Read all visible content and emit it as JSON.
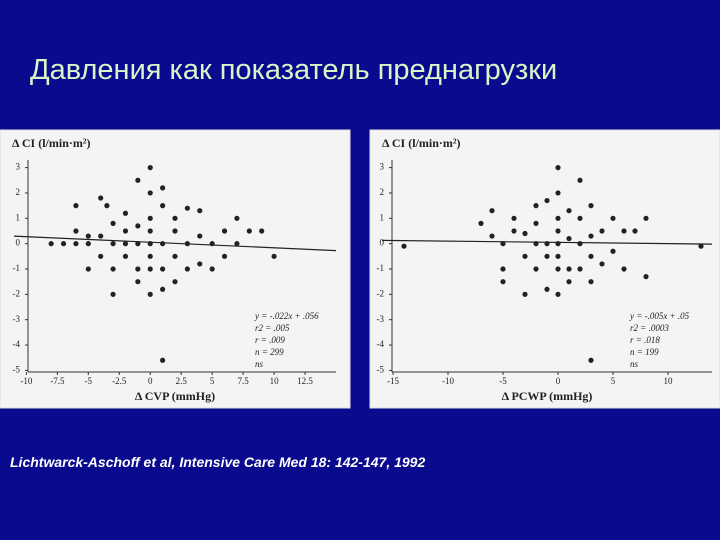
{
  "slide": {
    "title": "Давления как показатель преднагрузки",
    "citation": "Lichtwarck-Aschoff et al, Intensive Care Med 18: 142-147, 1992"
  },
  "chart_data": [
    {
      "type": "scatter",
      "y_label": "Δ CI (l/min·m²)",
      "x_label": "Δ CVP (mmHg)",
      "xlim": [
        -11,
        15
      ],
      "ylim": [
        -5.3,
        3.3
      ],
      "xticks": [
        -10,
        -7.5,
        -5,
        -2.5,
        0,
        2.5,
        5,
        7.5,
        10,
        12.5
      ],
      "yticks": [
        3,
        2,
        1,
        0,
        -1,
        -2,
        -3,
        -4,
        -5
      ],
      "color": "#222222",
      "trendline": {
        "slope": -0.022,
        "intercept": 0.056
      },
      "annotations": [
        "y = -.022x + .056",
        "r2 = .005",
        "r = .009",
        "n = 299",
        "ns"
      ],
      "x": [
        -8,
        -7,
        -6,
        -6,
        -6,
        -5,
        -5,
        -5,
        -4,
        -4,
        -4,
        -3.5,
        -3,
        -3,
        -3,
        -3,
        -2,
        -2,
        -2,
        -2,
        -1,
        -1,
        -1,
        -1,
        -1,
        0,
        0,
        0,
        0,
        0,
        0,
        0,
        0,
        1,
        1,
        1,
        1,
        1,
        1,
        2,
        2,
        2,
        2,
        3,
        3,
        3,
        4,
        4,
        4,
        5,
        5,
        6,
        6,
        7,
        7,
        8,
        9,
        10
      ],
      "values": [
        0,
        0,
        0,
        0.5,
        1.5,
        0,
        -1,
        0.3,
        -0.5,
        0.3,
        1.8,
        1.5,
        0,
        0.8,
        -1,
        -2,
        0.5,
        -0.5,
        1.2,
        0,
        0,
        2.5,
        -1,
        -1.5,
        0.7,
        0,
        3,
        2,
        1,
        -1,
        -2,
        0.5,
        -0.5,
        0,
        2.2,
        1.5,
        -1,
        -1.8,
        -4.6,
        0.5,
        -0.5,
        -1.5,
        1,
        0,
        1.4,
        -1,
        0.3,
        -0.8,
        1.3,
        0,
        -1,
        0.5,
        -0.5,
        1,
        0,
        0.5,
        0.5,
        -0.5
      ]
    },
    {
      "type": "scatter",
      "y_label": "Δ CI (l/min·m²)",
      "x_label": "Δ PCWP (mmHg)",
      "xlim": [
        -16,
        14
      ],
      "ylim": [
        -5.3,
        3.3
      ],
      "xticks": [
        -15,
        -10,
        -5,
        0,
        5,
        10
      ],
      "yticks": [
        3,
        2,
        1,
        0,
        -1,
        -2,
        -3,
        -4,
        -5
      ],
      "color": "#222222",
      "trendline": {
        "slope": -0.005,
        "intercept": 0.05
      },
      "annotations": [
        "y = -.005x + .05",
        "r2 = .0003",
        "r = .018",
        "n = 199",
        "ns"
      ],
      "x": [
        -14,
        -7,
        -6,
        -6,
        -5,
        -5,
        -5,
        -4,
        -4,
        -3,
        -3,
        -3,
        -2,
        -2,
        -2,
        -2,
        -1,
        -1,
        -1,
        -1,
        0,
        0,
        0,
        0,
        0,
        0,
        0,
        0,
        1,
        1,
        1,
        1,
        2,
        2,
        2,
        2,
        3,
        3,
        3,
        3,
        4,
        4,
        5,
        5,
        6,
        6,
        7,
        8,
        8,
        13,
        3
      ],
      "values": [
        -0.1,
        0.8,
        1.3,
        0.3,
        0,
        -1,
        -1.5,
        0.5,
        1,
        -0.5,
        -2,
        0.4,
        1.5,
        0,
        -1,
        0.8,
        1.7,
        0,
        -0.5,
        -1.8,
        0,
        3,
        2,
        1,
        -1,
        -2,
        0.5,
        -0.5,
        0.2,
        -1,
        1.3,
        -1.5,
        2.5,
        0,
        -1,
        1,
        0.3,
        -0.5,
        1.5,
        -1.5,
        0.5,
        -0.8,
        1,
        -0.3,
        0.5,
        -1,
        0.5,
        -1.3,
        1,
        -0.1,
        -4.6
      ]
    }
  ]
}
